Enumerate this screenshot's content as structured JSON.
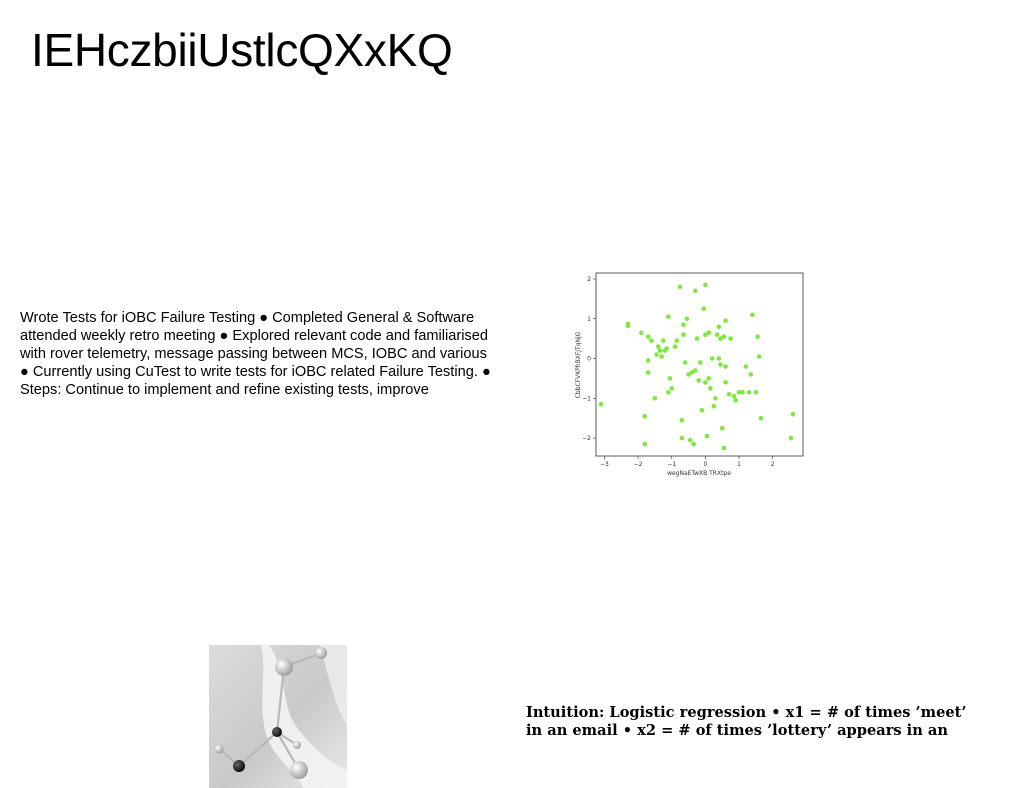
{
  "page": {
    "title": "IEHczbiiUstlcQXxKQ"
  },
  "body_text": {
    "lines": [
      "Wrote Tests for iOBC Failure Testing ● Completed General & Software",
      "attended weekly retro meeting ● Explored relevant code and familiarised",
      "with rover telemetry, message passing between MCS, IOBC and various",
      "● Currently using CuTest to write tests for iOBC related Failure Testing. ●",
      "Steps: Continue to implement and refine existing tests, improve"
    ]
  },
  "note": {
    "lines": [
      "Intuition: Logistic regression • x1 = # of times ’meet’",
      "in an email • x2 = # of times ’lottery’ appears in an"
    ]
  },
  "chart_data": {
    "type": "scatter",
    "title": "",
    "xlabel": "wegNaETwXB TRXtpe",
    "ylabel": "CbbCFVKPhBXFJTqNjG",
    "xlim": [
      -3.25,
      2.9
    ],
    "ylim": [
      -2.45,
      2.15
    ],
    "xticks": [
      -3,
      -2,
      -1,
      0,
      1,
      2
    ],
    "yticks": [
      -2,
      -1,
      0,
      1,
      2
    ],
    "xtick_labels": [
      "−3",
      "−2",
      "−1",
      "0",
      "1",
      "2"
    ],
    "ytick_labels": [
      "−2",
      "−1",
      "0",
      "1",
      "2"
    ],
    "grid": false,
    "marker_color": "#7ee83c",
    "points": [
      [
        -3.1,
        -1.15
      ],
      [
        -2.3,
        0.87
      ],
      [
        -2.3,
        0.82
      ],
      [
        -1.9,
        0.65
      ],
      [
        -1.8,
        -1.45
      ],
      [
        -1.8,
        -2.15
      ],
      [
        -1.7,
        0.55
      ],
      [
        -1.7,
        -0.05
      ],
      [
        -1.7,
        -0.35
      ],
      [
        -1.6,
        0.45
      ],
      [
        -1.5,
        -1.0
      ],
      [
        -1.45,
        0.1
      ],
      [
        -1.4,
        0.3
      ],
      [
        -1.35,
        0.2
      ],
      [
        -1.3,
        0.05
      ],
      [
        -1.25,
        0.45
      ],
      [
        -1.2,
        0.2
      ],
      [
        -1.15,
        0.25
      ],
      [
        -1.1,
        -0.85
      ],
      [
        -1.1,
        1.05
      ],
      [
        -1.05,
        -0.5
      ],
      [
        -1.0,
        -0.75
      ],
      [
        -0.9,
        0.3
      ],
      [
        -0.85,
        0.45
      ],
      [
        -0.75,
        1.8
      ],
      [
        -0.7,
        -1.55
      ],
      [
        -0.7,
        -2.0
      ],
      [
        -0.65,
        0.6
      ],
      [
        -0.65,
        0.85
      ],
      [
        -0.6,
        -0.1
      ],
      [
        -0.55,
        1.0
      ],
      [
        -0.5,
        -0.4
      ],
      [
        -0.45,
        -2.05
      ],
      [
        -0.4,
        -0.35
      ],
      [
        -0.35,
        -2.15
      ],
      [
        -0.3,
        -0.3
      ],
      [
        -0.3,
        1.7
      ],
      [
        -0.25,
        0.5
      ],
      [
        -0.2,
        -0.55
      ],
      [
        -0.15,
        -0.1
      ],
      [
        -0.1,
        -1.3
      ],
      [
        -0.05,
        1.25
      ],
      [
        0.0,
        1.85
      ],
      [
        0.0,
        0.6
      ],
      [
        0.0,
        -0.6
      ],
      [
        0.05,
        -1.95
      ],
      [
        0.1,
        -0.5
      ],
      [
        0.1,
        0.65
      ],
      [
        0.15,
        -0.75
      ],
      [
        0.2,
        0.0
      ],
      [
        0.25,
        -1.2
      ],
      [
        0.3,
        -1.0
      ],
      [
        0.35,
        0.6
      ],
      [
        0.4,
        0.8
      ],
      [
        0.4,
        0.0
      ],
      [
        0.45,
        0.5
      ],
      [
        0.45,
        -0.15
      ],
      [
        0.5,
        -1.75
      ],
      [
        0.55,
        -2.25
      ],
      [
        0.55,
        0.55
      ],
      [
        0.6,
        -0.6
      ],
      [
        0.6,
        -0.2
      ],
      [
        0.6,
        0.95
      ],
      [
        0.7,
        -0.9
      ],
      [
        0.75,
        0.5
      ],
      [
        0.85,
        -0.95
      ],
      [
        0.9,
        -1.05
      ],
      [
        1.0,
        -0.85
      ],
      [
        1.1,
        -0.85
      ],
      [
        1.2,
        -0.2
      ],
      [
        1.3,
        -0.85
      ],
      [
        1.35,
        -0.4
      ],
      [
        1.4,
        1.1
      ],
      [
        1.5,
        -0.85
      ],
      [
        1.55,
        0.55
      ],
      [
        1.6,
        0.05
      ],
      [
        1.65,
        -1.5
      ],
      [
        2.55,
        -2.0
      ],
      [
        2.6,
        -1.4
      ]
    ]
  }
}
